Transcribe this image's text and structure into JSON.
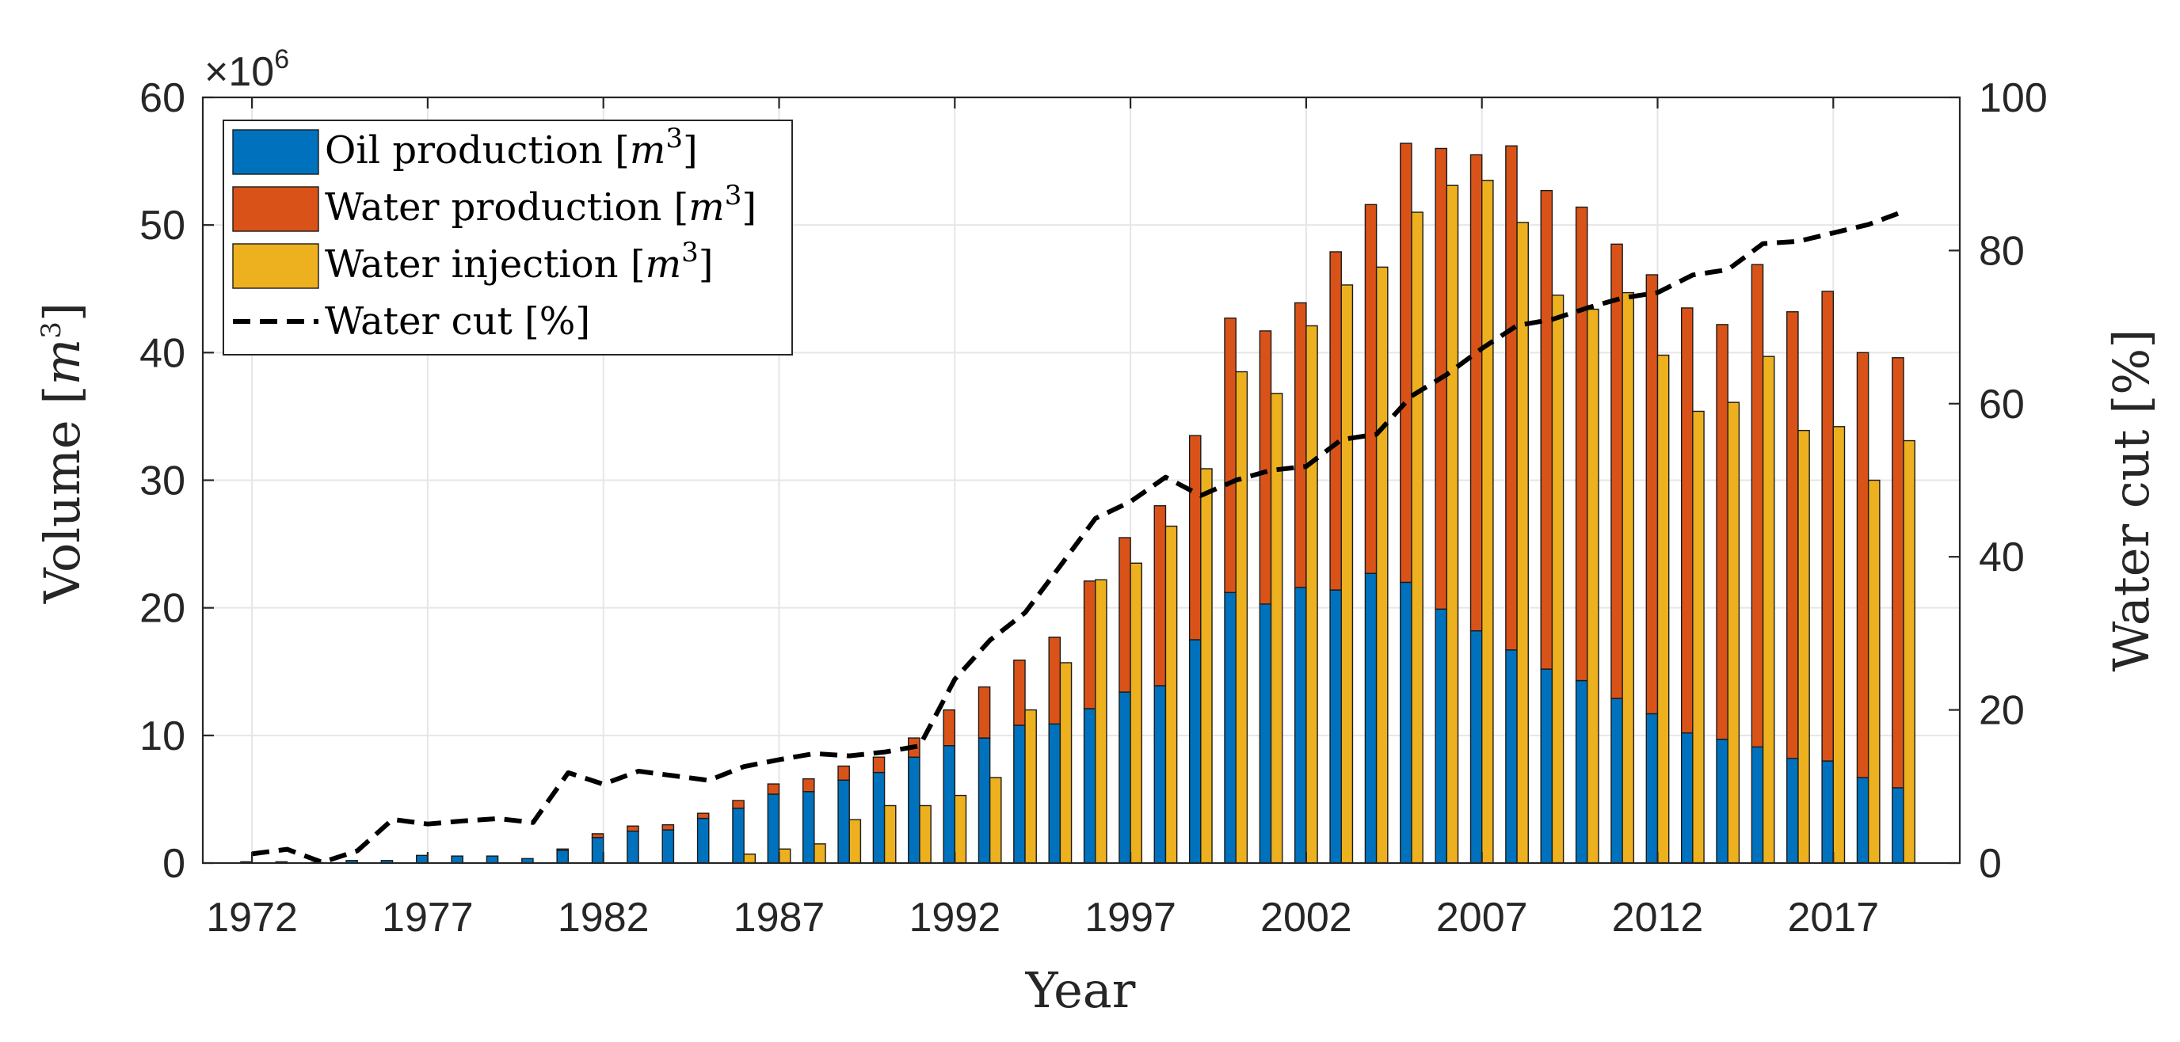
{
  "colors": {
    "oil": "#0072BD",
    "water_production": "#D95319",
    "water_injection": "#EDB120",
    "water_cut": "#000000",
    "axis": "#262626",
    "grid": "#e6e6e6"
  },
  "chart_data": {
    "type": "bar",
    "subtype": "stacked-and-grouped bar with line on secondary axis",
    "x": [
      1972,
      1973,
      1974,
      1975,
      1976,
      1977,
      1978,
      1979,
      1980,
      1981,
      1982,
      1983,
      1984,
      1985,
      1986,
      1987,
      1988,
      1989,
      1990,
      1991,
      1992,
      1993,
      1994,
      1995,
      1996,
      1997,
      1998,
      1999,
      2000,
      2001,
      2002,
      2003,
      2004,
      2005,
      2006,
      2007,
      2008,
      2009,
      2010,
      2011,
      2012,
      2013,
      2014,
      2015,
      2016,
      2017,
      2018,
      2019
    ],
    "xlabel": "Year",
    "ylabel": "Volume [m3]",
    "ylabel_parts": {
      "base": "Volume [",
      "var": "m",
      "exp": "3",
      "close": "]"
    },
    "y2label": "Water cut [%]",
    "y_multiplier": "×10",
    "y_multiplier_exp": "6",
    "ylim": [
      0,
      60
    ],
    "y2lim": [
      0,
      100
    ],
    "xlim": [
      1970.6,
      2020.6
    ],
    "xticks": [
      1972,
      1977,
      1982,
      1987,
      1992,
      1997,
      2002,
      2007,
      2012,
      2017
    ],
    "yticks": [
      0,
      10,
      20,
      30,
      40,
      50,
      60
    ],
    "y2ticks": [
      0,
      20,
      40,
      60,
      80,
      100
    ],
    "grid": true,
    "legend_position": "top-left",
    "series": [
      {
        "name": "Oil production [m3]",
        "legend": {
          "base": "Oil production [",
          "var": "m",
          "exp": "3",
          "close": "]"
        },
        "type": "bar-stacked",
        "values": [
          0.1,
          0.1,
          0.05,
          0.2,
          0.2,
          0.6,
          0.55,
          0.55,
          0.35,
          1.0,
          2.0,
          2.5,
          2.6,
          3.5,
          4.3,
          5.4,
          5.6,
          6.5,
          7.1,
          8.3,
          9.2,
          9.8,
          10.8,
          10.9,
          12.1,
          13.4,
          13.9,
          17.5,
          21.2,
          20.3,
          21.6,
          21.4,
          22.7,
          22.0,
          19.9,
          18.2,
          16.7,
          15.2,
          14.3,
          12.9,
          11.7,
          10.2,
          9.7,
          9.1,
          8.2,
          8.0,
          6.7,
          5.9
        ]
      },
      {
        "name": "Water production [m3]",
        "legend": {
          "base": "Water production [",
          "var": "m",
          "exp": "3",
          "close": "]"
        },
        "type": "bar-stacked",
        "values": [
          0.0,
          0.0,
          0.0,
          0.0,
          0.0,
          0.0,
          0.0,
          0.0,
          0.0,
          0.1,
          0.3,
          0.4,
          0.4,
          0.4,
          0.6,
          0.8,
          1.0,
          1.1,
          1.2,
          1.5,
          2.8,
          4.0,
          5.1,
          6.8,
          10.0,
          12.1,
          14.1,
          16.0,
          21.5,
          21.4,
          22.3,
          26.5,
          28.9,
          34.4,
          36.1,
          37.3,
          39.5,
          37.5,
          37.1,
          35.6,
          34.4,
          33.3,
          32.5,
          37.8,
          35.0,
          36.8,
          33.3,
          33.7
        ]
      },
      {
        "name": "Water injection [m3]",
        "legend": {
          "base": "Water injection [",
          "var": "m",
          "exp": "3",
          "close": "]"
        },
        "type": "bar",
        "values": [
          0,
          0,
          0,
          0,
          0,
          0,
          0,
          0,
          0,
          0,
          0,
          0,
          0,
          0,
          0.7,
          1.1,
          1.5,
          3.4,
          4.5,
          4.5,
          5.3,
          6.7,
          12.0,
          15.7,
          22.2,
          23.5,
          26.4,
          30.9,
          38.5,
          36.8,
          42.1,
          45.3,
          46.7,
          51.0,
          53.1,
          53.5,
          50.2,
          44.5,
          43.4,
          44.7,
          39.8,
          35.4,
          36.1,
          39.7,
          33.9,
          34.2,
          30.0,
          33.1
        ]
      },
      {
        "name": "Water cut [%]",
        "legend": {
          "base": "Water cut [%]"
        },
        "type": "line-dashed",
        "axis": "right",
        "values": [
          1.2,
          1.8,
          0.1,
          1.6,
          5.7,
          5.1,
          5.5,
          5.8,
          5.3,
          11.8,
          10.3,
          12.0,
          11.4,
          10.8,
          12.6,
          13.5,
          14.3,
          14.0,
          14.5,
          15.3,
          24.0,
          29.1,
          32.7,
          38.8,
          45.0,
          47.2,
          50.4,
          48.0,
          50.0,
          51.3,
          51.8,
          55.3,
          56.0,
          61.0,
          63.8,
          67.2,
          70.2,
          71.0,
          72.5,
          73.8,
          74.5,
          76.8,
          77.5,
          80.9,
          81.2,
          82.3,
          83.4,
          85.1
        ]
      }
    ]
  }
}
